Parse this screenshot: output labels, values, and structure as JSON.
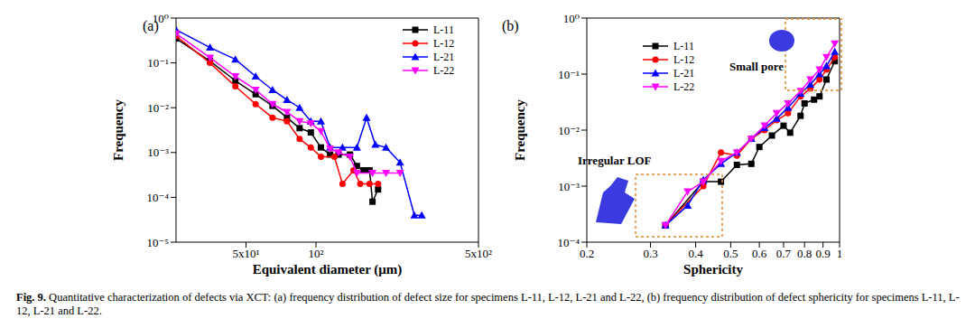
{
  "chart_data": [
    {
      "type": "line",
      "title": "(a)",
      "xlabel": "Equivalent diameter (μm)",
      "ylabel": "Frequency",
      "log": true,
      "legend": "upper right",
      "xlim": [
        25,
        500
      ],
      "xticks": [
        {
          "value": 50,
          "label": "5x10¹"
        },
        {
          "value": 100,
          "label": "10²"
        },
        {
          "value": 500,
          "label": "5x10²"
        }
      ],
      "ylim": [
        1e-05,
        1
      ],
      "yticks": [
        {
          "value": 1e-05,
          "label": "10⁻⁵"
        },
        {
          "value": 0.0001,
          "label": "10⁻⁴"
        },
        {
          "value": 0.001,
          "label": "10⁻³"
        },
        {
          "value": 0.01,
          "label": "10⁻²"
        },
        {
          "value": 0.1,
          "label": "10⁻¹"
        },
        {
          "value": 1,
          "label": "10⁰"
        }
      ],
      "series": [
        {
          "name": "L-11",
          "color": "#000000",
          "marker": "square",
          "x": [
            25,
            35,
            45,
            55,
            65,
            75,
            85,
            95,
            105,
            115,
            125,
            140,
            150,
            160,
            170,
            175,
            185
          ],
          "values": [
            0.35,
            0.11,
            0.04,
            0.02,
            0.011,
            0.006,
            0.0035,
            0.0028,
            0.0013,
            0.0009,
            0.0009,
            0.0009,
            0.0005,
            0.0004,
            0.0004,
            8e-05,
            0.00015
          ]
        },
        {
          "name": "L-12",
          "color": "#ff0000",
          "marker": "circle",
          "x": [
            25,
            35,
            45,
            55,
            65,
            75,
            85,
            95,
            105,
            120,
            130,
            145,
            155,
            170,
            185
          ],
          "values": [
            0.4,
            0.1,
            0.03,
            0.012,
            0.006,
            0.005,
            0.002,
            0.0013,
            0.0008,
            0.0008,
            0.0002,
            0.0004,
            0.0002,
            0.0002,
            0.0002
          ]
        },
        {
          "name": "L-21",
          "color": "#0000ff",
          "marker": "triangle",
          "x": [
            25,
            35,
            45,
            55,
            65,
            75,
            85,
            95,
            105,
            115,
            130,
            150,
            165,
            180,
            200,
            230,
            265,
            285
          ],
          "values": [
            0.55,
            0.22,
            0.12,
            0.05,
            0.025,
            0.015,
            0.01,
            0.005,
            0.005,
            0.0013,
            0.0013,
            0.0013,
            0.006,
            0.0015,
            0.0013,
            0.0006,
            4e-05,
            4e-05
          ]
        },
        {
          "name": "L-22",
          "color": "#ff00ff",
          "marker": "triangle-down",
          "x": [
            25,
            35,
            45,
            55,
            65,
            75,
            85,
            95,
            105,
            115,
            125,
            140,
            150,
            175,
            200,
            230
          ],
          "values": [
            0.45,
            0.13,
            0.05,
            0.025,
            0.012,
            0.008,
            0.005,
            0.0045,
            0.003,
            0.0012,
            0.001,
            0.0008,
            0.00035,
            0.00035,
            0.00035,
            0.00035
          ]
        }
      ]
    },
    {
      "type": "line",
      "title": "(b)",
      "xlabel": "Sphericity",
      "ylabel": "Frequency",
      "log": true,
      "legend": "upper left",
      "annotations": [
        "Small pore",
        "Irregular LOF"
      ],
      "xlim": [
        0.2,
        1
      ],
      "xticks": [
        0.2,
        0.3,
        0.4,
        0.5,
        0.6,
        0.7,
        0.8,
        0.9,
        1
      ],
      "ylim": [
        0.0001,
        1
      ],
      "yticks": [
        {
          "value": 0.0001,
          "label": "10⁻⁴"
        },
        {
          "value": 0.001,
          "label": "10⁻³"
        },
        {
          "value": 0.01,
          "label": "10⁻²"
        },
        {
          "value": 0.1,
          "label": "10⁻¹"
        },
        {
          "value": 1,
          "label": "10⁰"
        }
      ],
      "series": [
        {
          "name": "L-11",
          "color": "#000000",
          "marker": "square",
          "x": [
            0.33,
            0.42,
            0.47,
            0.52,
            0.57,
            0.6,
            0.65,
            0.7,
            0.73,
            0.78,
            0.8,
            0.85,
            0.88,
            0.92,
            0.97
          ],
          "values": [
            0.0002,
            0.0012,
            0.0012,
            0.0024,
            0.0025,
            0.005,
            0.008,
            0.012,
            0.009,
            0.018,
            0.03,
            0.035,
            0.04,
            0.08,
            0.17
          ]
        },
        {
          "name": "L-12",
          "color": "#ff0000",
          "marker": "circle",
          "x": [
            0.33,
            0.42,
            0.47,
            0.52,
            0.57,
            0.62,
            0.67,
            0.72,
            0.78,
            0.83,
            0.88,
            0.92,
            0.97
          ],
          "values": [
            0.0002,
            0.001,
            0.004,
            0.0035,
            0.007,
            0.01,
            0.015,
            0.02,
            0.04,
            0.055,
            0.08,
            0.12,
            0.2
          ]
        },
        {
          "name": "L-21",
          "color": "#0000ff",
          "marker": "triangle",
          "x": [
            0.33,
            0.38,
            0.42,
            0.47,
            0.52,
            0.57,
            0.62,
            0.67,
            0.72,
            0.78,
            0.83,
            0.88,
            0.92,
            0.97
          ],
          "values": [
            0.0002,
            0.00045,
            0.0013,
            0.0025,
            0.004,
            0.007,
            0.011,
            0.016,
            0.025,
            0.045,
            0.065,
            0.1,
            0.14,
            0.25
          ]
        },
        {
          "name": "L-22",
          "color": "#ff00ff",
          "marker": "triangle-down",
          "x": [
            0.33,
            0.38,
            0.42,
            0.47,
            0.52,
            0.57,
            0.62,
            0.67,
            0.72,
            0.78,
            0.83,
            0.88,
            0.92,
            0.97
          ],
          "values": [
            0.0002,
            0.0008,
            0.0012,
            0.0028,
            0.004,
            0.007,
            0.012,
            0.02,
            0.03,
            0.05,
            0.08,
            0.12,
            0.2,
            0.35
          ]
        }
      ]
    }
  ],
  "caption": {
    "label": "Fig. 9.",
    "text": "Quantitative characterization of defects via XCT: (a) frequency distribution of defect size for specimens L-11, L-12, L-21 and L-22, (b) frequency distribution of defect sphericity for specimens L-11, L-12, L-21 and L-22."
  }
}
